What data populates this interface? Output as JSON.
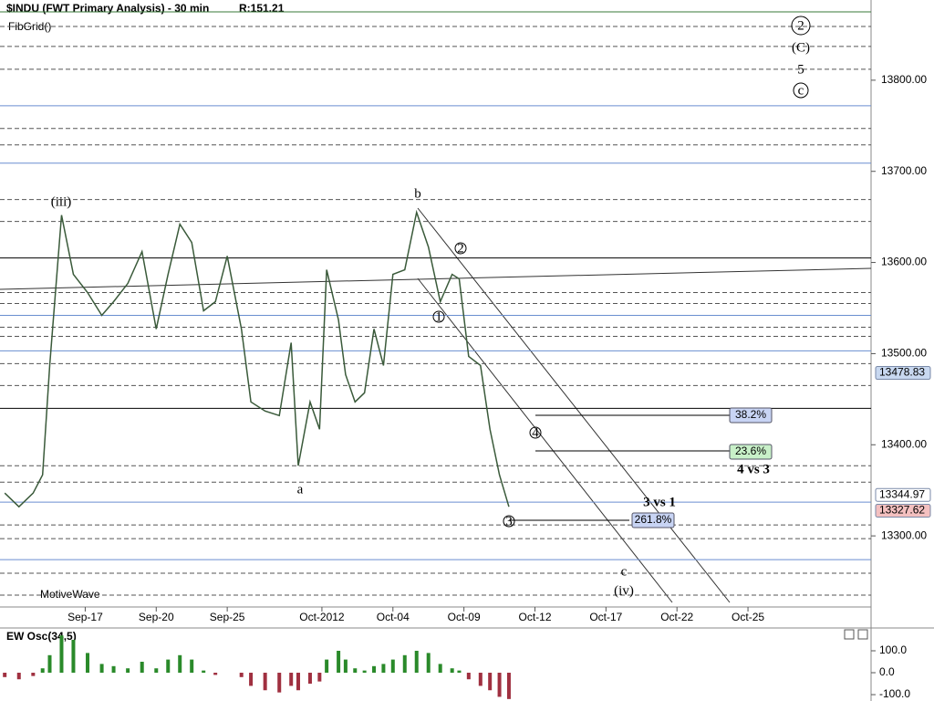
{
  "header": {
    "title": "$INDU (FWT Primary Analysis) - 30 min",
    "range": "R:151.21",
    "study": "FibGrid()",
    "footer": "MotiveWave"
  },
  "chart_data": [
    {
      "type": "line",
      "color": "#3a5a3a",
      "x": [
        -3.4,
        -2.8,
        -2.2,
        -1.8,
        -1.5,
        -1.0,
        -0.5,
        0.1,
        0.7,
        1.2,
        1.8,
        2.4,
        3.0,
        3.5,
        4.0,
        4.5,
        5.0,
        5.5,
        6.0,
        6.6,
        7.0,
        7.6,
        8.2,
        8.7,
        9.0,
        9.5,
        9.9,
        10.2,
        10.7,
        11.0,
        11.4,
        11.8,
        12.2,
        12.6,
        13.0,
        13.5,
        14.0,
        14.5,
        15.0,
        15.5,
        15.8,
        16.2,
        16.7,
        17.1,
        17.5,
        17.9
      ],
      "values": [
        13347,
        13332,
        13347,
        13367,
        13487,
        13652,
        13587,
        13567,
        13542,
        13557,
        13577,
        13612,
        13527,
        13587,
        13642,
        13622,
        13547,
        13557,
        13607,
        13527,
        13447,
        13437,
        13432,
        13512,
        13377,
        13447,
        13417,
        13592,
        13537,
        13477,
        13447,
        13457,
        13527,
        13487,
        13587,
        13592,
        13655,
        13617,
        13557,
        13587,
        13582,
        13497,
        13487,
        13417,
        13367,
        13332
      ],
      "xlim": [
        -3.6,
        33.2
      ],
      "xticks": [
        {
          "value": 0,
          "label": "Sep-17"
        },
        {
          "value": 3,
          "label": "Sep-20"
        },
        {
          "value": 6,
          "label": "Sep-25"
        },
        {
          "value": 10,
          "label": "Oct-2012"
        },
        {
          "value": 13,
          "label": "Oct-04"
        },
        {
          "value": 16,
          "label": "Oct-09"
        },
        {
          "value": 19,
          "label": "Oct-12"
        },
        {
          "value": 22,
          "label": "Oct-17"
        },
        {
          "value": 25,
          "label": "Oct-22"
        },
        {
          "value": 28,
          "label": "Oct-25"
        }
      ],
      "ylim": [
        13222,
        13888
      ],
      "yticks": [
        {
          "value": 13300,
          "label": "13300.00"
        },
        {
          "value": 13400,
          "label": "13400.00"
        },
        {
          "value": 13500,
          "label": "13500.00"
        },
        {
          "value": 13600,
          "label": "13600.00"
        },
        {
          "value": 13700,
          "label": "13700.00"
        },
        {
          "value": 13800,
          "label": "13800.00"
        }
      ],
      "blue_levels": [
        13772,
        13709,
        13542,
        13503,
        13337,
        13274
      ],
      "black_levels": [
        13605,
        13440
      ],
      "dashed_levels": [
        13859,
        13837,
        13812,
        13747,
        13729,
        13669,
        13645,
        13567,
        13555,
        13529,
        13519,
        13489,
        13465,
        13377,
        13359,
        13312,
        13297,
        13259,
        13235
      ],
      "top_level": 13875,
      "price_tags": [
        {
          "value": 13478.83,
          "label": "13478.83",
          "color": "#c8d8f0"
        },
        {
          "value": 13344.97,
          "label": "13344.97",
          "color": "#ffffff"
        },
        {
          "value": 13327.62,
          "label": "13327.62",
          "color": "#f4c0c0"
        }
      ],
      "wave_labels": [
        "(iii)",
        "b",
        "a",
        "c",
        "(iv)",
        "2",
        "(C)",
        "5",
        "c",
        "1",
        "2",
        "3",
        "4"
      ],
      "fib_labels": [
        {
          "text": "38.2%",
          "color": "#c8d4f4"
        },
        {
          "text": "23.6%",
          "color": "#c8f0c8"
        },
        {
          "text": "261.8%",
          "color": "#c8d4f4"
        }
      ],
      "notes": [
        "4 vs 3",
        "3 vs 1"
      ]
    },
    {
      "type": "bar",
      "title": "EW Osc(34,5)",
      "colors": {
        "up": "#2a8a2a",
        "down": "#a03040"
      },
      "x": [
        -3.4,
        -2.8,
        -2.2,
        -1.8,
        -1.5,
        -1.0,
        -0.5,
        0.1,
        0.7,
        1.2,
        1.8,
        2.4,
        3.0,
        3.5,
        4.0,
        4.5,
        5.0,
        5.5,
        6.0,
        6.6,
        7.0,
        7.6,
        8.2,
        8.7,
        9.0,
        9.5,
        9.9,
        10.2,
        10.7,
        11.0,
        11.4,
        11.8,
        12.2,
        12.6,
        13.0,
        13.5,
        14.0,
        14.5,
        15.0,
        15.5,
        15.8,
        16.2,
        16.7,
        17.1,
        17.5,
        17.9
      ],
      "values": [
        -20,
        -30,
        -15,
        20,
        80,
        170,
        150,
        90,
        40,
        30,
        20,
        50,
        20,
        60,
        80,
        60,
        10,
        -10,
        0,
        -20,
        -60,
        -80,
        -90,
        -60,
        -80,
        -50,
        -40,
        60,
        100,
        60,
        20,
        10,
        30,
        40,
        60,
        80,
        100,
        90,
        40,
        20,
        10,
        -30,
        -60,
        -80,
        -110,
        -120
      ],
      "ylim": [
        -129,
        204
      ],
      "yticks": [
        {
          "value": 100,
          "label": "100.0"
        },
        {
          "value": 0,
          "label": "0.0"
        },
        {
          "value": -100,
          "label": "-100.0"
        }
      ]
    }
  ]
}
